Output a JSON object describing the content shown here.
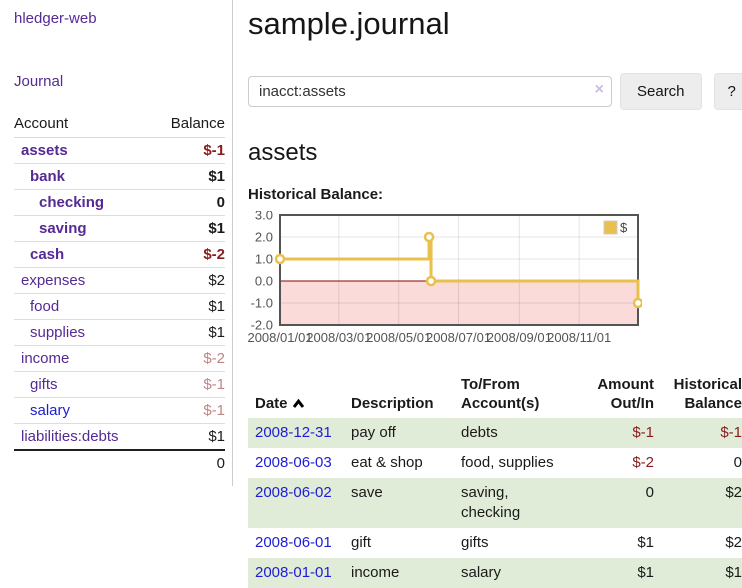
{
  "app": {
    "brand": "hledger-web"
  },
  "sidebar": {
    "journal_link": "Journal",
    "columns": {
      "account": "Account",
      "balance": "Balance"
    },
    "accounts": [
      {
        "name": "assets",
        "balance": "$-1",
        "level": 1,
        "strong": true,
        "neg": "strong",
        "link": "purple"
      },
      {
        "name": "bank",
        "balance": "$1",
        "level": 2,
        "strong": true,
        "neg": "",
        "link": "purple"
      },
      {
        "name": "checking",
        "balance": "0",
        "level": 3,
        "strong": true,
        "neg": "",
        "link": "purple"
      },
      {
        "name": "saving",
        "balance": "$1",
        "level": 3,
        "strong": true,
        "neg": "",
        "link": "purple"
      },
      {
        "name": "cash",
        "balance": "$-2",
        "level": 2,
        "strong": true,
        "neg": "strong",
        "link": "purple"
      },
      {
        "name": "expenses",
        "balance": "$2",
        "level": 1,
        "strong": false,
        "neg": "",
        "link": "purple"
      },
      {
        "name": "food",
        "balance": "$1",
        "level": 2,
        "strong": false,
        "neg": "",
        "link": "purple"
      },
      {
        "name": "supplies",
        "balance": "$1",
        "level": 2,
        "strong": false,
        "neg": "",
        "link": "purple"
      },
      {
        "name": "income",
        "balance": "$-2",
        "level": 1,
        "strong": false,
        "neg": "soft",
        "link": "purple"
      },
      {
        "name": "gifts",
        "balance": "$-1",
        "level": 2,
        "strong": false,
        "neg": "soft",
        "link": "purple"
      },
      {
        "name": "salary",
        "balance": "$-1",
        "level": 2,
        "strong": false,
        "neg": "soft",
        "link": "blue"
      },
      {
        "name": "liabilities:debts",
        "balance": "$1",
        "level": 1,
        "strong": false,
        "neg": "",
        "link": "purple"
      }
    ],
    "total": "0"
  },
  "header": {
    "title": "sample.journal"
  },
  "search": {
    "value": "inacct:assets",
    "clear_label": "×",
    "button_label": "Search",
    "help_label": "?"
  },
  "account_page": {
    "title": "assets",
    "chart_label": "Historical Balance:"
  },
  "chart_data": {
    "type": "line",
    "title": "Historical Balance",
    "step": true,
    "series": [
      {
        "name": "$",
        "color": "#e9c04c",
        "points": [
          [
            "2008-01-01",
            1
          ],
          [
            "2008-06-01",
            2
          ],
          [
            "2008-06-03",
            0
          ],
          [
            "2008-12-31",
            -1
          ]
        ]
      }
    ],
    "xlim": [
      "2008-01-01",
      "2008-12-31"
    ],
    "ylim": [
      -2,
      3
    ],
    "x_ticks": [
      "2008/01/01",
      "2008/03/01",
      "2008/05/01",
      "2008/07/01",
      "2008/09/01",
      "2008/11/01"
    ],
    "y_ticks": [
      3.0,
      2.0,
      1.0,
      0.0,
      -1.0,
      -2.0
    ],
    "grid": true,
    "negative_region_fill": "#fbdada",
    "zero_line_color": "#8b0000",
    "legend": {
      "position": "top-right",
      "label": "$"
    }
  },
  "register": {
    "headers": {
      "date": "Date",
      "description": "Description",
      "accounts_l1": "To/From",
      "accounts_l2": "Account(s)",
      "amount_l1": "Amount",
      "amount_l2": "Out/In",
      "balance_l1": "Historical",
      "balance_l2": "Balance"
    },
    "rows": [
      {
        "date": "2008-12-31",
        "description": "pay off",
        "accounts": "debts",
        "amount": "$-1",
        "amount_neg": true,
        "balance": "$-1",
        "balance_neg": true
      },
      {
        "date": "2008-06-03",
        "description": "eat & shop",
        "accounts": "food, supplies",
        "amount": "$-2",
        "amount_neg": true,
        "balance": "0",
        "balance_neg": false
      },
      {
        "date": "2008-06-02",
        "description": "save",
        "accounts": "saving, checking",
        "amount": "0",
        "amount_neg": false,
        "balance": "$2",
        "balance_neg": false
      },
      {
        "date": "2008-06-01",
        "description": "gift",
        "accounts": "gifts",
        "amount": "$1",
        "amount_neg": false,
        "balance": "$2",
        "balance_neg": false
      },
      {
        "date": "2008-01-01",
        "description": "income",
        "accounts": "salary",
        "amount": "$1",
        "amount_neg": false,
        "balance": "$1",
        "balance_neg": false
      }
    ]
  }
}
